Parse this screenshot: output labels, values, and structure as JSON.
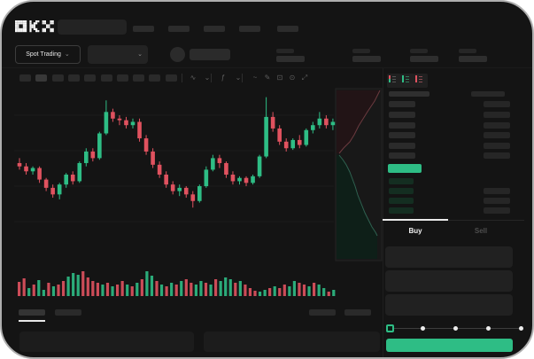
{
  "app": {
    "logo": "OKX"
  },
  "colors": {
    "bg": "#141414",
    "frame_border": "#aeaeae",
    "green": "#2ebd85",
    "red": "#e0525f",
    "pill": "#2c2c2c",
    "pill_dark": "#262626",
    "bid_pill": "#142e21",
    "panel": "#1c1c1c",
    "input_bg": "#212121",
    "grid": "#1d1d1d",
    "depth_ask_fill": "#221416",
    "depth_bid_fill": "#0e1f18",
    "depth_ask_line": "#6b3a3f",
    "depth_bid_line": "#2f6150"
  },
  "header": {
    "search_value": "",
    "nav_item_count": 5
  },
  "subheader": {
    "market_type": "Spot Trading",
    "chevron": "⌄",
    "stat_group_count": 4
  },
  "chart_toolbar": {
    "timeframe_count": 10,
    "active_timeframe_index": 1,
    "icons": [
      "wave",
      "chevron-down",
      "indicator",
      "chevron-down",
      "overlay-wave",
      "pencil",
      "camera",
      "settings",
      "fullscreen"
    ]
  },
  "chart_data": {
    "type": "candlestick",
    "title": "",
    "xlabel": "",
    "ylabel": "",
    "price_range": [
      0,
      100
    ],
    "grid": "on",
    "candles": [
      [
        57,
        60,
        53,
        55
      ],
      [
        55,
        57,
        50,
        52
      ],
      [
        52,
        55,
        50,
        54
      ],
      [
        54,
        55,
        45,
        47
      ],
      [
        47,
        48,
        40,
        42
      ],
      [
        42,
        44,
        36,
        38
      ],
      [
        38,
        45,
        35,
        44
      ],
      [
        44,
        51,
        42,
        50
      ],
      [
        50,
        52,
        44,
        46
      ],
      [
        46,
        58,
        45,
        57
      ],
      [
        57,
        66,
        55,
        64
      ],
      [
        64,
        66,
        58,
        60
      ],
      [
        60,
        76,
        59,
        75
      ],
      [
        75,
        95,
        74,
        88
      ],
      [
        88,
        90,
        82,
        84
      ],
      [
        84,
        86,
        80,
        83
      ],
      [
        83,
        85,
        78,
        80
      ],
      [
        80,
        84,
        78,
        82
      ],
      [
        82,
        84,
        70,
        72
      ],
      [
        72,
        74,
        62,
        64
      ],
      [
        64,
        66,
        54,
        56
      ],
      [
        56,
        58,
        48,
        50
      ],
      [
        50,
        52,
        42,
        44
      ],
      [
        44,
        46,
        38,
        40
      ],
      [
        40,
        44,
        37,
        42
      ],
      [
        42,
        43,
        36,
        38
      ],
      [
        38,
        40,
        30,
        34
      ],
      [
        34,
        44,
        33,
        43
      ],
      [
        43,
        55,
        42,
        53
      ],
      [
        53,
        62,
        52,
        60
      ],
      [
        60,
        62,
        54,
        57
      ],
      [
        57,
        58,
        48,
        50
      ],
      [
        50,
        52,
        44,
        46
      ],
      [
        46,
        49,
        44,
        48
      ],
      [
        48,
        49,
        43,
        45
      ],
      [
        45,
        50,
        44,
        49
      ],
      [
        49,
        62,
        48,
        61
      ],
      [
        61,
        97,
        60,
        85
      ],
      [
        85,
        88,
        76,
        78
      ],
      [
        78,
        80,
        68,
        70
      ],
      [
        70,
        72,
        64,
        66
      ],
      [
        66,
        72,
        65,
        71
      ],
      [
        71,
        74,
        66,
        68
      ],
      [
        68,
        78,
        67,
        77
      ],
      [
        77,
        82,
        75,
        80
      ],
      [
        80,
        88,
        78,
        84
      ],
      [
        84,
        86,
        78,
        80
      ],
      [
        80,
        84,
        77,
        82
      ]
    ],
    "volume": {
      "heights": [
        16,
        20,
        9,
        13,
        18,
        7,
        15,
        11,
        13,
        17,
        22,
        26,
        24,
        28,
        21,
        17,
        15,
        13,
        15,
        11,
        13,
        17,
        13,
        11,
        15,
        19,
        28,
        23,
        17,
        13,
        11,
        15,
        13,
        17,
        19,
        15,
        13,
        17,
        15,
        13,
        19,
        17,
        21,
        19,
        15,
        17,
        13,
        9,
        6,
        5,
        7,
        9,
        11,
        9,
        13,
        11,
        17,
        15,
        13,
        11,
        15,
        13,
        9,
        5,
        7
      ],
      "colors": [
        "r",
        "r",
        "g",
        "r",
        "g",
        "g",
        "r",
        "g",
        "r",
        "r",
        "g",
        "g",
        "g",
        "r",
        "r",
        "r",
        "r",
        "g",
        "r",
        "g",
        "r",
        "r",
        "g",
        "r",
        "g",
        "r",
        "g",
        "g",
        "r",
        "g",
        "r",
        "g",
        "r",
        "g",
        "r",
        "r",
        "g",
        "g",
        "r",
        "g",
        "r",
        "g",
        "g",
        "g",
        "r",
        "g",
        "r",
        "r",
        "r",
        "g",
        "g",
        "r",
        "g",
        "r",
        "r",
        "g",
        "g",
        "r",
        "r",
        "g",
        "r",
        "g",
        "g",
        "r",
        "g"
      ]
    },
    "depth": {
      "asks_line": [
        [
          413,
          4
        ],
        [
          410,
          10
        ],
        [
          407,
          16
        ],
        [
          403,
          22
        ],
        [
          399,
          28
        ],
        [
          394,
          36
        ],
        [
          389,
          44
        ],
        [
          384,
          54
        ],
        [
          379,
          62
        ],
        [
          372,
          69
        ],
        [
          367,
          75
        ]
      ],
      "bids_line": [
        [
          367,
          77
        ],
        [
          371,
          82
        ],
        [
          375,
          88
        ],
        [
          379,
          96
        ],
        [
          382,
          104
        ],
        [
          385,
          112
        ],
        [
          388,
          122
        ],
        [
          392,
          132
        ],
        [
          396,
          142
        ],
        [
          400,
          150
        ],
        [
          404,
          158
        ],
        [
          408,
          164
        ],
        [
          410,
          168
        ]
      ]
    }
  },
  "order_book": {
    "view_modes": [
      "book-all",
      "book-bids",
      "book-asks"
    ],
    "header_placeholder_count": 2,
    "ask_row_count": 6,
    "bid_row_count": 4,
    "last_price_direction": "up"
  },
  "trade_panel": {
    "buy_tab": "Buy",
    "sell_tab": "Sell",
    "active_tab": "buy",
    "input_count": 3,
    "slider": {
      "steps": 5,
      "value_index": 0
    },
    "submit_label": ""
  },
  "bottom_panel": {
    "tab_count": 2,
    "active_tab_index": 0,
    "action_button_count": 2,
    "content_panel_count": 2
  }
}
